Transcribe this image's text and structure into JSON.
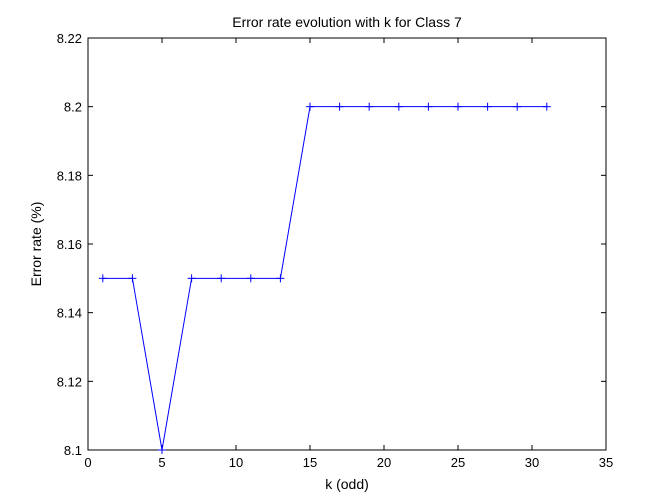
{
  "chart_data": {
    "type": "line",
    "title": "Error rate evolution with k for Class 7",
    "xlabel": "k (odd)",
    "ylabel": "Error rate (%)",
    "xlim": [
      0,
      35
    ],
    "ylim": [
      8.1,
      8.22
    ],
    "xticks": [
      0,
      5,
      10,
      15,
      20,
      25,
      30,
      35
    ],
    "yticks": [
      8.1,
      8.12,
      8.14,
      8.16,
      8.18,
      8.2,
      8.22
    ],
    "xtick_labels": [
      "0",
      "5",
      "10",
      "15",
      "20",
      "25",
      "30",
      "35"
    ],
    "ytick_labels": [
      "8.1",
      "8.12",
      "8.14",
      "8.16",
      "8.18",
      "8.2",
      "8.22"
    ],
    "grid": false,
    "marker": "plus",
    "line_color": "#0000ff",
    "series": [
      {
        "x": [
          1,
          3,
          5,
          7,
          9,
          11,
          13,
          15,
          17,
          19,
          21,
          23,
          25,
          27,
          29,
          31
        ],
        "values": [
          8.15,
          8.15,
          8.1,
          8.15,
          8.15,
          8.15,
          8.15,
          8.2,
          8.2,
          8.2,
          8.2,
          8.2,
          8.2,
          8.2,
          8.2,
          8.2
        ]
      }
    ]
  }
}
